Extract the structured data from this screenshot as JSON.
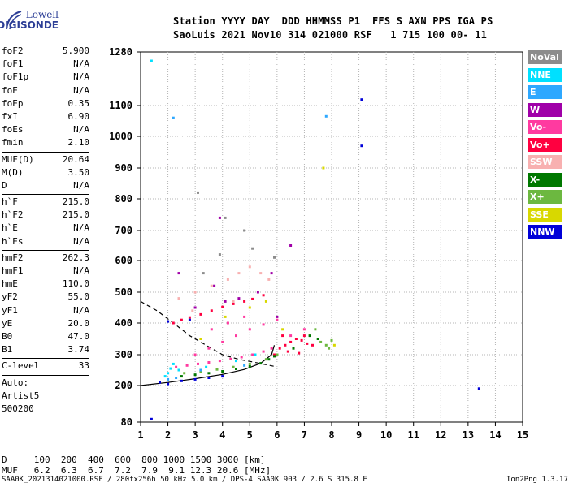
{
  "logo": {
    "top": "Lowell",
    "bottom": "DIGISONDE"
  },
  "header": {
    "line1": "Station YYYY DAY  DDD HHMMSS P1  FFS S AXN PPS IGA PS",
    "line2": "SaoLuis 2021 Nov10 314 021000 RSF   1 715 100 00- 11"
  },
  "params": {
    "g1": [
      {
        "label": "foF2",
        "value": "5.900"
      },
      {
        "label": "foF1",
        "value": "N/A"
      },
      {
        "label": "foF1p",
        "value": "N/A"
      },
      {
        "label": "foE",
        "value": "N/A"
      },
      {
        "label": "foEp",
        "value": "0.35"
      },
      {
        "label": "fxI",
        "value": "6.90"
      },
      {
        "label": "foEs",
        "value": "N/A"
      },
      {
        "label": "fmin",
        "value": "2.10"
      }
    ],
    "g2": [
      {
        "label": "MUF(D)",
        "value": "20.64"
      },
      {
        "label": "M(D)",
        "value": "3.50"
      },
      {
        "label": "D",
        "value": "N/A"
      }
    ],
    "g3": [
      {
        "label": "h`F",
        "value": "215.0"
      },
      {
        "label": "h`F2",
        "value": "215.0"
      },
      {
        "label": "h`E",
        "value": "N/A"
      },
      {
        "label": "h`Es",
        "value": "N/A"
      }
    ],
    "g4": [
      {
        "label": "hmF2",
        "value": "262.3"
      },
      {
        "label": "hmF1",
        "value": "N/A"
      },
      {
        "label": "hmE",
        "value": "110.0"
      },
      {
        "label": "yF2",
        "value": "55.0"
      },
      {
        "label": "yF1",
        "value": "N/A"
      },
      {
        "label": "yE",
        "value": "20.0"
      },
      {
        "label": "B0",
        "value": "47.0"
      },
      {
        "label": "B1",
        "value": "3.74"
      }
    ],
    "g5": [
      {
        "label": "C-level",
        "value": "33"
      }
    ],
    "g6": [
      "Auto:",
      "Artist5",
      "500200"
    ]
  },
  "legend": [
    {
      "label": "NoVal",
      "color": "#8c8c8c"
    },
    {
      "label": "NNE",
      "color": "#00e0ff"
    },
    {
      "label": "E",
      "color": "#2ea8ff"
    },
    {
      "label": "W",
      "color": "#a000a8"
    },
    {
      "label": "Vo-",
      "color": "#ff3aa0"
    },
    {
      "label": "Vo+",
      "color": "#ff0040"
    },
    {
      "label": "SSW",
      "color": "#f8b0b0"
    },
    {
      "label": "X-",
      "color": "#007800"
    },
    {
      "label": "X+",
      "color": "#6cb840"
    },
    {
      "label": "SSE",
      "color": "#d8d800"
    },
    {
      "label": "NNW",
      "color": "#0000d8"
    }
  ],
  "bottom": {
    "d_line": "D     100  200  400  600  800 1000 1500 3000 [km]",
    "muf_line": "MUF   6.2  6.3  6.7  7.2  7.9  9.1 12.3 20.6 [MHz]"
  },
  "footer": {
    "left": "SAA0K_2021314021000.RSF / 280fx256h 50 kHz 5.0 km / DPS-4 SAA0K 903 / 2.6 S 315.8 E",
    "right": "Ion2Png 1.3.17"
  },
  "chart_data": {
    "type": "scatter",
    "title": "",
    "xlabel": "",
    "ylabel": "",
    "xlim": [
      1,
      15
    ],
    "ylim": [
      80,
      1280
    ],
    "x_ticks": [
      1,
      2,
      3,
      4,
      5,
      6,
      7,
      8,
      9,
      10,
      11,
      12,
      13,
      14,
      15
    ],
    "y_ticks": [
      80,
      200,
      300,
      400,
      500,
      600,
      700,
      800,
      900,
      1000,
      1100,
      1280
    ],
    "grid": true,
    "legend_position": "right",
    "series": [
      {
        "name": "Vo+",
        "color": "#ff0040",
        "points": [
          [
            2.2,
            400
          ],
          [
            2.5,
            410
          ],
          [
            2.8,
            418
          ],
          [
            3.2,
            428
          ],
          [
            3.6,
            440
          ],
          [
            4.0,
            452
          ],
          [
            4.4,
            462
          ],
          [
            4.8,
            470
          ],
          [
            5.1,
            478
          ],
          [
            5.5,
            490
          ],
          [
            6.3,
            330
          ],
          [
            6.5,
            340
          ],
          [
            6.7,
            350
          ],
          [
            6.9,
            345
          ],
          [
            7.1,
            335
          ],
          [
            7.3,
            330
          ],
          [
            6.4,
            310
          ],
          [
            6.8,
            305
          ],
          [
            6.2,
            360
          ],
          [
            5.9,
            300
          ],
          [
            6.1,
            320
          ],
          [
            7.0,
            360
          ]
        ]
      },
      {
        "name": "Vo-",
        "color": "#ff3aa0",
        "points": [
          [
            2.3,
            260
          ],
          [
            2.7,
            265
          ],
          [
            3.1,
            270
          ],
          [
            3.5,
            275
          ],
          [
            3.9,
            280
          ],
          [
            4.3,
            286
          ],
          [
            4.7,
            292
          ],
          [
            5.1,
            300
          ],
          [
            5.5,
            310
          ],
          [
            5.8,
            320
          ],
          [
            3.0,
            300
          ],
          [
            3.5,
            320
          ],
          [
            4.0,
            340
          ],
          [
            4.5,
            360
          ],
          [
            5.0,
            380
          ],
          [
            5.5,
            395
          ],
          [
            6.0,
            410
          ],
          [
            6.5,
            360
          ],
          [
            7.0,
            380
          ],
          [
            3.6,
            380
          ],
          [
            4.2,
            400
          ],
          [
            4.8,
            420
          ]
        ]
      },
      {
        "name": "X-",
        "color": "#007800",
        "points": [
          [
            2.5,
            230
          ],
          [
            3.0,
            235
          ],
          [
            3.5,
            240
          ],
          [
            4.0,
            246
          ],
          [
            4.5,
            254
          ],
          [
            5.0,
            262
          ],
          [
            5.4,
            272
          ],
          [
            5.7,
            285
          ],
          [
            5.9,
            295
          ],
          [
            6.0,
            300
          ],
          [
            7.2,
            360
          ],
          [
            7.5,
            350
          ],
          [
            6.6,
            320
          ]
        ]
      },
      {
        "name": "X+",
        "color": "#6cb840",
        "points": [
          [
            2.6,
            240
          ],
          [
            3.2,
            246
          ],
          [
            3.8,
            252
          ],
          [
            4.4,
            260
          ],
          [
            5.0,
            270
          ],
          [
            5.6,
            285
          ],
          [
            6.0,
            300
          ],
          [
            7.4,
            380
          ],
          [
            7.6,
            340
          ],
          [
            7.8,
            330
          ],
          [
            8.0,
            345
          ],
          [
            7.9,
            320
          ]
        ]
      },
      {
        "name": "NNE",
        "color": "#00e0ff",
        "points": [
          [
            1.4,
            1250
          ],
          [
            1.9,
            230
          ],
          [
            2.0,
            240
          ],
          [
            2.4,
            250
          ],
          [
            2.1,
            255
          ],
          [
            2.2,
            270
          ],
          [
            4.5,
            280
          ],
          [
            5.2,
            300
          ],
          [
            3.4,
            260
          ]
        ]
      },
      {
        "name": "E",
        "color": "#2ea8ff",
        "points": [
          [
            2.2,
            1060
          ],
          [
            2.0,
            220
          ],
          [
            2.3,
            225
          ],
          [
            4.8,
            265
          ],
          [
            3.2,
            250
          ],
          [
            7.8,
            1065
          ]
        ]
      },
      {
        "name": "W",
        "color": "#a000a8",
        "points": [
          [
            3.9,
            740
          ],
          [
            2.4,
            560
          ],
          [
            3.7,
            520
          ],
          [
            4.1,
            470
          ],
          [
            4.6,
            480
          ],
          [
            5.3,
            500
          ],
          [
            6.5,
            650
          ],
          [
            5.8,
            560
          ],
          [
            3.0,
            450
          ],
          [
            6.0,
            420
          ]
        ]
      },
      {
        "name": "NNW",
        "color": "#0000d8",
        "points": [
          [
            1.4,
            90
          ],
          [
            1.7,
            210
          ],
          [
            2.0,
            205
          ],
          [
            2.5,
            215
          ],
          [
            3.0,
            220
          ],
          [
            3.5,
            225
          ],
          [
            4.0,
            230
          ],
          [
            9.1,
            1120
          ],
          [
            9.1,
            970
          ],
          [
            13.4,
            190
          ],
          [
            2.8,
            410
          ],
          [
            2.0,
            405
          ]
        ]
      },
      {
        "name": "SSW",
        "color": "#f8b0b0",
        "points": [
          [
            2.4,
            480
          ],
          [
            3.0,
            500
          ],
          [
            3.6,
            520
          ],
          [
            4.2,
            540
          ],
          [
            4.6,
            560
          ],
          [
            5.0,
            580
          ],
          [
            5.4,
            560
          ],
          [
            5.7,
            540
          ],
          [
            2.9,
            440
          ],
          [
            4.4,
            470
          ]
        ]
      },
      {
        "name": "SSE",
        "color": "#d8d800",
        "points": [
          [
            3.2,
            350
          ],
          [
            4.1,
            420
          ],
          [
            5.0,
            450
          ],
          [
            5.6,
            470
          ],
          [
            6.2,
            380
          ],
          [
            7.7,
            900
          ],
          [
            8.1,
            330
          ]
        ]
      },
      {
        "name": "NoVal",
        "color": "#8c8c8c",
        "points": [
          [
            3.1,
            820
          ],
          [
            3.9,
            620
          ],
          [
            4.8,
            700
          ],
          [
            5.9,
            610
          ],
          [
            4.1,
            740
          ],
          [
            3.3,
            560
          ],
          [
            5.1,
            640
          ]
        ]
      }
    ],
    "profile_curves": [
      {
        "name": "profile",
        "points": [
          [
            1.0,
            470
          ],
          [
            1.6,
            440
          ],
          [
            2.2,
            400
          ],
          [
            2.8,
            360
          ],
          [
            3.4,
            330
          ],
          [
            4.0,
            300
          ],
          [
            4.6,
            285
          ],
          [
            5.2,
            275
          ],
          [
            5.9,
            262
          ]
        ]
      },
      {
        "name": "trace",
        "points": [
          [
            1.0,
            200
          ],
          [
            2.0,
            210
          ],
          [
            3.0,
            222
          ],
          [
            4.0,
            236
          ],
          [
            4.8,
            252
          ],
          [
            5.4,
            272
          ],
          [
            5.8,
            300
          ],
          [
            5.9,
            330
          ]
        ]
      }
    ]
  }
}
